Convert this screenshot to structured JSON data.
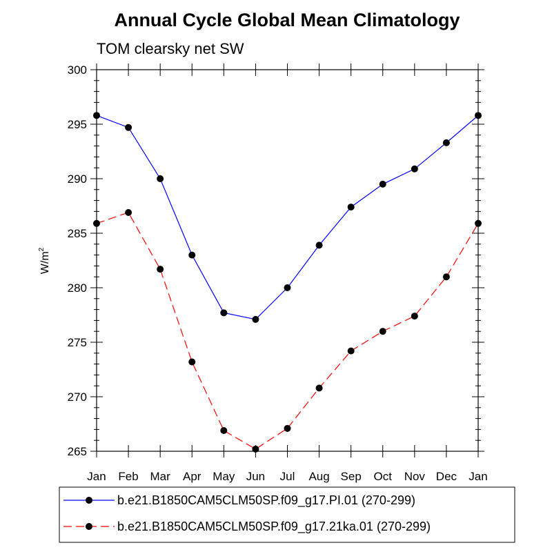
{
  "chart_data": {
    "type": "line",
    "title": "Annual Cycle Global Mean Climatology",
    "subtitle": "TOM clearsky net SW",
    "ylabel": "W/m",
    "ylabel_sup": "2",
    "xlabel": "",
    "categories": [
      "Jan",
      "Feb",
      "Mar",
      "Apr",
      "May",
      "Jun",
      "Jul",
      "Aug",
      "Sep",
      "Oct",
      "Nov",
      "Dec",
      "Jan"
    ],
    "ylim": [
      265,
      300
    ],
    "yticks": [
      265,
      270,
      275,
      280,
      285,
      290,
      295,
      300
    ],
    "grid": false,
    "legend_position": "bottom",
    "series": [
      {
        "name": "b.e21.B1850CAM5CLM50SP.f09_g17.PI.01 (270-299)",
        "color": "#0000ff",
        "dash": "solid",
        "values": [
          295.8,
          294.7,
          290.0,
          283.0,
          277.7,
          277.1,
          280.0,
          283.9,
          287.4,
          289.5,
          290.9,
          293.3,
          295.8
        ]
      },
      {
        "name": "b.e21.B1850CAM5CLM50SP.f09_g17.21ka.01 (270-299)",
        "color": "#ff0000",
        "dash": "dashed",
        "values": [
          285.9,
          286.9,
          281.7,
          273.2,
          266.9,
          265.2,
          267.1,
          270.8,
          274.2,
          276.0,
          277.4,
          281.0,
          285.9
        ]
      }
    ]
  }
}
